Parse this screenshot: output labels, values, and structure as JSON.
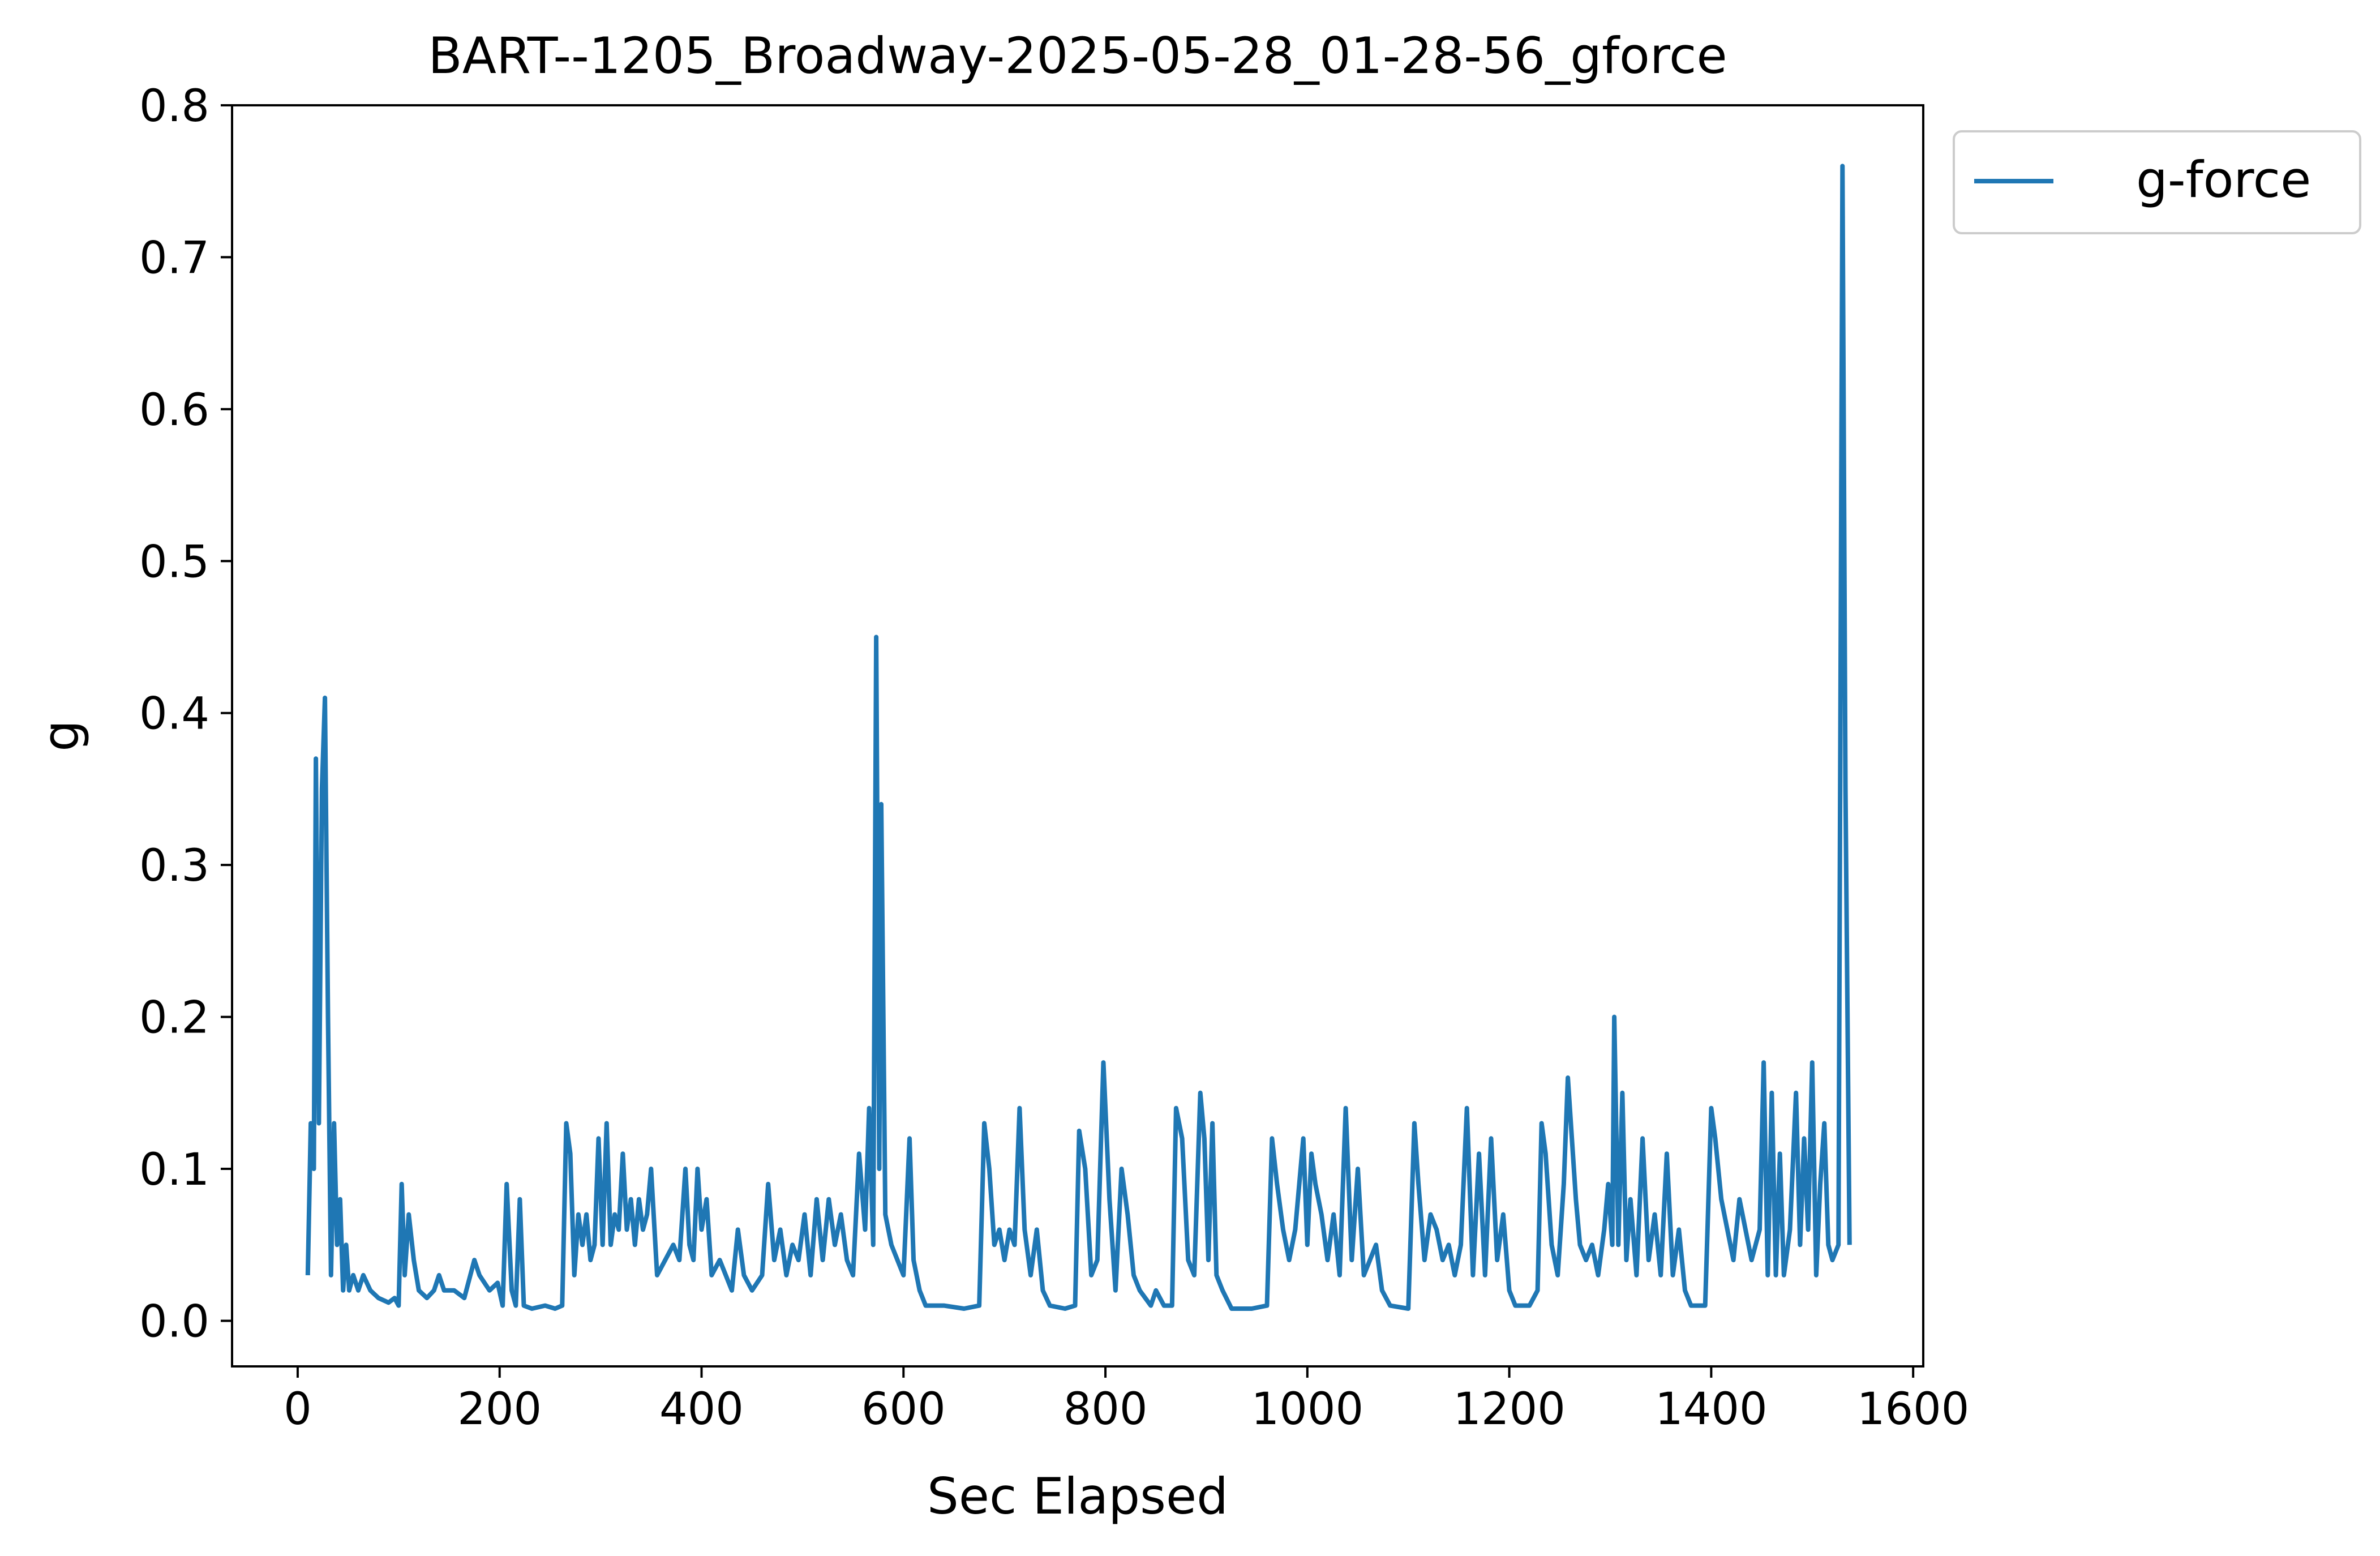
{
  "chart_data": {
    "type": "line",
    "title": "BART--1205_Broadway-2025-05-28_01-28-56_gforce",
    "xlabel": "Sec Elapsed",
    "ylabel": "g",
    "xlim": [
      -65,
      1610
    ],
    "ylim": [
      -0.03,
      0.8
    ],
    "xticks": [
      0,
      200,
      400,
      600,
      800,
      1000,
      1200,
      1400,
      1600
    ],
    "yticks": [
      0.0,
      0.1,
      0.2,
      0.3,
      0.4,
      0.5,
      0.6,
      0.7,
      0.8
    ],
    "grid": false,
    "legend_position": "outside-top-right",
    "series": [
      {
        "name": "g-force",
        "color": "#1f77b4",
        "points": [
          [
            10,
            0.03
          ],
          [
            13,
            0.13
          ],
          [
            16,
            0.1
          ],
          [
            18,
            0.37
          ],
          [
            21,
            0.13
          ],
          [
            24,
            0.35
          ],
          [
            27,
            0.41
          ],
          [
            30,
            0.2
          ],
          [
            33,
            0.03
          ],
          [
            36,
            0.13
          ],
          [
            39,
            0.05
          ],
          [
            42,
            0.08
          ],
          [
            45,
            0.02
          ],
          [
            48,
            0.05
          ],
          [
            51,
            0.02
          ],
          [
            55,
            0.03
          ],
          [
            60,
            0.02
          ],
          [
            65,
            0.03
          ],
          [
            72,
            0.02
          ],
          [
            80,
            0.015
          ],
          [
            90,
            0.012
          ],
          [
            96,
            0.015
          ],
          [
            100,
            0.01
          ],
          [
            103,
            0.09
          ],
          [
            106,
            0.03
          ],
          [
            110,
            0.07
          ],
          [
            115,
            0.04
          ],
          [
            120,
            0.02
          ],
          [
            128,
            0.015
          ],
          [
            135,
            0.02
          ],
          [
            140,
            0.03
          ],
          [
            145,
            0.02
          ],
          [
            155,
            0.02
          ],
          [
            165,
            0.015
          ],
          [
            175,
            0.04
          ],
          [
            180,
            0.03
          ],
          [
            190,
            0.02
          ],
          [
            198,
            0.025
          ],
          [
            203,
            0.01
          ],
          [
            207,
            0.09
          ],
          [
            212,
            0.02
          ],
          [
            216,
            0.01
          ],
          [
            220,
            0.08
          ],
          [
            224,
            0.01
          ],
          [
            232,
            0.008
          ],
          [
            245,
            0.01
          ],
          [
            255,
            0.008
          ],
          [
            262,
            0.01
          ],
          [
            266,
            0.13
          ],
          [
            270,
            0.11
          ],
          [
            274,
            0.03
          ],
          [
            278,
            0.07
          ],
          [
            282,
            0.05
          ],
          [
            286,
            0.07
          ],
          [
            290,
            0.04
          ],
          [
            294,
            0.05
          ],
          [
            298,
            0.12
          ],
          [
            302,
            0.05
          ],
          [
            306,
            0.13
          ],
          [
            310,
            0.05
          ],
          [
            314,
            0.07
          ],
          [
            318,
            0.06
          ],
          [
            322,
            0.11
          ],
          [
            326,
            0.06
          ],
          [
            330,
            0.08
          ],
          [
            334,
            0.05
          ],
          [
            338,
            0.08
          ],
          [
            342,
            0.06
          ],
          [
            346,
            0.07
          ],
          [
            350,
            0.1
          ],
          [
            356,
            0.03
          ],
          [
            364,
            0.04
          ],
          [
            372,
            0.05
          ],
          [
            378,
            0.04
          ],
          [
            384,
            0.1
          ],
          [
            388,
            0.05
          ],
          [
            392,
            0.04
          ],
          [
            396,
            0.1
          ],
          [
            400,
            0.06
          ],
          [
            405,
            0.08
          ],
          [
            410,
            0.03
          ],
          [
            418,
            0.04
          ],
          [
            424,
            0.03
          ],
          [
            430,
            0.02
          ],
          [
            436,
            0.06
          ],
          [
            442,
            0.03
          ],
          [
            450,
            0.02
          ],
          [
            460,
            0.03
          ],
          [
            466,
            0.09
          ],
          [
            472,
            0.04
          ],
          [
            478,
            0.06
          ],
          [
            484,
            0.03
          ],
          [
            490,
            0.05
          ],
          [
            496,
            0.04
          ],
          [
            502,
            0.07
          ],
          [
            508,
            0.03
          ],
          [
            514,
            0.08
          ],
          [
            520,
            0.04
          ],
          [
            526,
            0.08
          ],
          [
            532,
            0.05
          ],
          [
            538,
            0.07
          ],
          [
            544,
            0.04
          ],
          [
            550,
            0.03
          ],
          [
            556,
            0.11
          ],
          [
            562,
            0.06
          ],
          [
            566,
            0.14
          ],
          [
            570,
            0.05
          ],
          [
            573,
            0.45
          ],
          [
            576,
            0.1
          ],
          [
            578,
            0.34
          ],
          [
            582,
            0.07
          ],
          [
            588,
            0.05
          ],
          [
            594,
            0.04
          ],
          [
            600,
            0.03
          ],
          [
            606,
            0.12
          ],
          [
            610,
            0.04
          ],
          [
            616,
            0.02
          ],
          [
            622,
            0.01
          ],
          [
            640,
            0.01
          ],
          [
            660,
            0.008
          ],
          [
            675,
            0.01
          ],
          [
            680,
            0.13
          ],
          [
            685,
            0.1
          ],
          [
            690,
            0.05
          ],
          [
            695,
            0.06
          ],
          [
            700,
            0.04
          ],
          [
            705,
            0.06
          ],
          [
            710,
            0.05
          ],
          [
            715,
            0.14
          ],
          [
            720,
            0.06
          ],
          [
            726,
            0.03
          ],
          [
            732,
            0.06
          ],
          [
            738,
            0.02
          ],
          [
            745,
            0.01
          ],
          [
            760,
            0.008
          ],
          [
            770,
            0.01
          ],
          [
            774,
            0.125
          ],
          [
            780,
            0.1
          ],
          [
            786,
            0.03
          ],
          [
            792,
            0.04
          ],
          [
            798,
            0.17
          ],
          [
            804,
            0.08
          ],
          [
            810,
            0.02
          ],
          [
            816,
            0.1
          ],
          [
            822,
            0.07
          ],
          [
            828,
            0.03
          ],
          [
            834,
            0.02
          ],
          [
            845,
            0.01
          ],
          [
            850,
            0.02
          ],
          [
            858,
            0.01
          ],
          [
            866,
            0.01
          ],
          [
            870,
            0.14
          ],
          [
            876,
            0.12
          ],
          [
            882,
            0.04
          ],
          [
            888,
            0.03
          ],
          [
            894,
            0.15
          ],
          [
            898,
            0.12
          ],
          [
            902,
            0.04
          ],
          [
            906,
            0.13
          ],
          [
            910,
            0.03
          ],
          [
            916,
            0.02
          ],
          [
            925,
            0.008
          ],
          [
            945,
            0.008
          ],
          [
            960,
            0.01
          ],
          [
            965,
            0.12
          ],
          [
            970,
            0.09
          ],
          [
            976,
            0.06
          ],
          [
            982,
            0.04
          ],
          [
            988,
            0.06
          ],
          [
            996,
            0.12
          ],
          [
            1000,
            0.05
          ],
          [
            1004,
            0.11
          ],
          [
            1008,
            0.09
          ],
          [
            1014,
            0.07
          ],
          [
            1020,
            0.04
          ],
          [
            1026,
            0.07
          ],
          [
            1032,
            0.03
          ],
          [
            1038,
            0.14
          ],
          [
            1044,
            0.04
          ],
          [
            1050,
            0.1
          ],
          [
            1056,
            0.03
          ],
          [
            1062,
            0.04
          ],
          [
            1068,
            0.05
          ],
          [
            1074,
            0.02
          ],
          [
            1082,
            0.01
          ],
          [
            1100,
            0.008
          ],
          [
            1106,
            0.13
          ],
          [
            1110,
            0.09
          ],
          [
            1116,
            0.04
          ],
          [
            1122,
            0.07
          ],
          [
            1128,
            0.06
          ],
          [
            1134,
            0.04
          ],
          [
            1140,
            0.05
          ],
          [
            1146,
            0.03
          ],
          [
            1152,
            0.05
          ],
          [
            1158,
            0.14
          ],
          [
            1164,
            0.03
          ],
          [
            1170,
            0.11
          ],
          [
            1176,
            0.03
          ],
          [
            1182,
            0.12
          ],
          [
            1188,
            0.04
          ],
          [
            1194,
            0.07
          ],
          [
            1200,
            0.02
          ],
          [
            1206,
            0.01
          ],
          [
            1220,
            0.01
          ],
          [
            1228,
            0.02
          ],
          [
            1232,
            0.13
          ],
          [
            1236,
            0.11
          ],
          [
            1242,
            0.05
          ],
          [
            1248,
            0.03
          ],
          [
            1254,
            0.09
          ],
          [
            1258,
            0.16
          ],
          [
            1262,
            0.12
          ],
          [
            1266,
            0.08
          ],
          [
            1270,
            0.05
          ],
          [
            1276,
            0.04
          ],
          [
            1282,
            0.05
          ],
          [
            1288,
            0.03
          ],
          [
            1294,
            0.06
          ],
          [
            1298,
            0.09
          ],
          [
            1302,
            0.05
          ],
          [
            1304,
            0.2
          ],
          [
            1308,
            0.05
          ],
          [
            1312,
            0.15
          ],
          [
            1316,
            0.04
          ],
          [
            1320,
            0.08
          ],
          [
            1326,
            0.03
          ],
          [
            1332,
            0.12
          ],
          [
            1338,
            0.04
          ],
          [
            1344,
            0.07
          ],
          [
            1350,
            0.03
          ],
          [
            1356,
            0.11
          ],
          [
            1362,
            0.03
          ],
          [
            1368,
            0.06
          ],
          [
            1374,
            0.02
          ],
          [
            1380,
            0.01
          ],
          [
            1394,
            0.01
          ],
          [
            1400,
            0.14
          ],
          [
            1404,
            0.12
          ],
          [
            1410,
            0.08
          ],
          [
            1416,
            0.06
          ],
          [
            1422,
            0.04
          ],
          [
            1428,
            0.08
          ],
          [
            1434,
            0.06
          ],
          [
            1440,
            0.04
          ],
          [
            1448,
            0.06
          ],
          [
            1452,
            0.17
          ],
          [
            1456,
            0.03
          ],
          [
            1460,
            0.15
          ],
          [
            1464,
            0.03
          ],
          [
            1468,
            0.11
          ],
          [
            1472,
            0.03
          ],
          [
            1478,
            0.06
          ],
          [
            1484,
            0.15
          ],
          [
            1488,
            0.05
          ],
          [
            1492,
            0.12
          ],
          [
            1496,
            0.06
          ],
          [
            1500,
            0.17
          ],
          [
            1504,
            0.03
          ],
          [
            1508,
            0.09
          ],
          [
            1512,
            0.13
          ],
          [
            1516,
            0.05
          ],
          [
            1520,
            0.04
          ],
          [
            1526,
            0.05
          ],
          [
            1530,
            0.76
          ],
          [
            1533,
            0.35
          ],
          [
            1535,
            0.2
          ],
          [
            1537,
            0.05
          ]
        ]
      }
    ]
  }
}
